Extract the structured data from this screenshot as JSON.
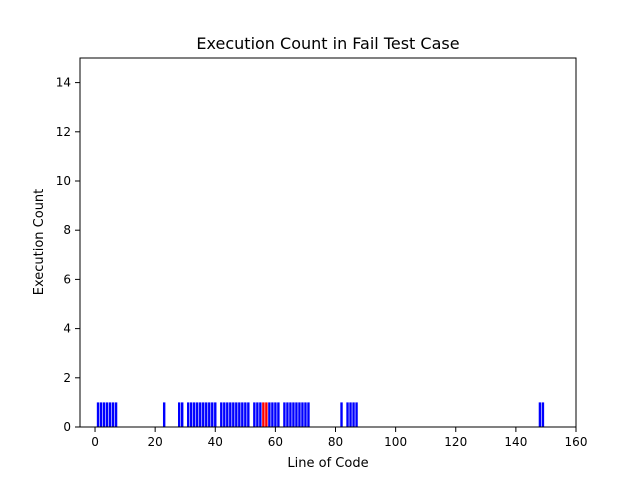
{
  "chart_data": {
    "type": "bar",
    "title": "Execution Count in Fail Test Case",
    "xlabel": "Line of Code",
    "ylabel": "Execution Count",
    "xlim": [
      -5,
      160
    ],
    "ylim": [
      0,
      15
    ],
    "xticks": [
      0,
      20,
      40,
      60,
      80,
      100,
      120,
      140,
      160
    ],
    "yticks": [
      0,
      2,
      4,
      6,
      8,
      10,
      12,
      14
    ],
    "grid": false,
    "default_color": "#0000ff",
    "highlight_color": "#ff0000",
    "bars": [
      {
        "x": 1,
        "value": 1
      },
      {
        "x": 2,
        "value": 1
      },
      {
        "x": 3,
        "value": 1
      },
      {
        "x": 4,
        "value": 1
      },
      {
        "x": 5,
        "value": 1
      },
      {
        "x": 6,
        "value": 1
      },
      {
        "x": 7,
        "value": 1
      },
      {
        "x": 23,
        "value": 1
      },
      {
        "x": 28,
        "value": 1
      },
      {
        "x": 29,
        "value": 1
      },
      {
        "x": 31,
        "value": 1
      },
      {
        "x": 32,
        "value": 1
      },
      {
        "x": 33,
        "value": 1
      },
      {
        "x": 34,
        "value": 1
      },
      {
        "x": 35,
        "value": 1
      },
      {
        "x": 36,
        "value": 1
      },
      {
        "x": 37,
        "value": 1
      },
      {
        "x": 38,
        "value": 1
      },
      {
        "x": 39,
        "value": 1
      },
      {
        "x": 40,
        "value": 1
      },
      {
        "x": 42,
        "value": 1
      },
      {
        "x": 43,
        "value": 1
      },
      {
        "x": 44,
        "value": 1
      },
      {
        "x": 45,
        "value": 1
      },
      {
        "x": 46,
        "value": 1
      },
      {
        "x": 47,
        "value": 1
      },
      {
        "x": 48,
        "value": 1
      },
      {
        "x": 49,
        "value": 1
      },
      {
        "x": 50,
        "value": 1
      },
      {
        "x": 51,
        "value": 1
      },
      {
        "x": 53,
        "value": 1
      },
      {
        "x": 54,
        "value": 1
      },
      {
        "x": 55,
        "value": 1
      },
      {
        "x": 56,
        "value": 1,
        "highlight": true
      },
      {
        "x": 57,
        "value": 1,
        "highlight": true
      },
      {
        "x": 58,
        "value": 1
      },
      {
        "x": 59,
        "value": 1
      },
      {
        "x": 60,
        "value": 1
      },
      {
        "x": 61,
        "value": 1
      },
      {
        "x": 63,
        "value": 1
      },
      {
        "x": 64,
        "value": 1
      },
      {
        "x": 65,
        "value": 1
      },
      {
        "x": 66,
        "value": 1
      },
      {
        "x": 67,
        "value": 1
      },
      {
        "x": 68,
        "value": 1
      },
      {
        "x": 69,
        "value": 1
      },
      {
        "x": 70,
        "value": 1
      },
      {
        "x": 71,
        "value": 1
      },
      {
        "x": 82,
        "value": 1
      },
      {
        "x": 84,
        "value": 1
      },
      {
        "x": 85,
        "value": 1
      },
      {
        "x": 86,
        "value": 1
      },
      {
        "x": 87,
        "value": 1
      },
      {
        "x": 148,
        "value": 1
      },
      {
        "x": 149,
        "value": 1
      }
    ]
  }
}
